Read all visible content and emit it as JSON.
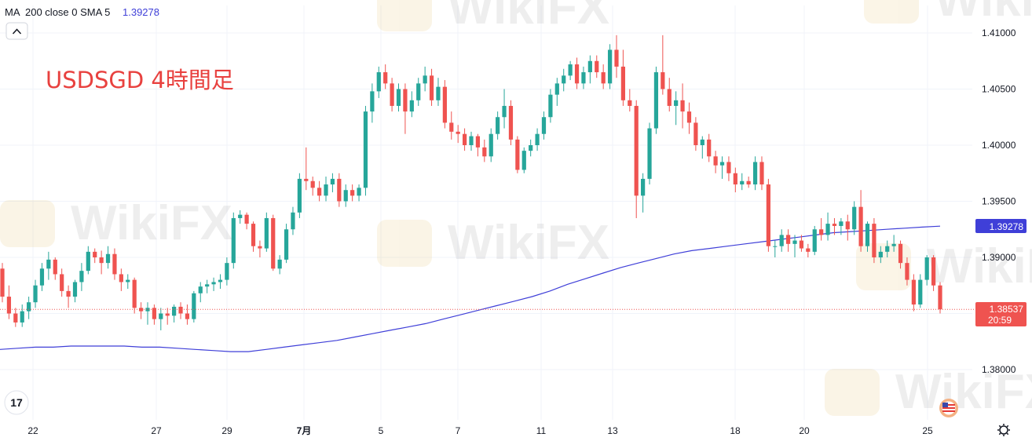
{
  "indicator": {
    "name": "MA",
    "params": "200 close 0 SMA 5",
    "value": "1.39278"
  },
  "chart_title": "USDSGD 4時間足",
  "collapse_button": "^",
  "logo_text": "17",
  "watermark": "WikiFX",
  "colors": {
    "up": "#26a69a",
    "down": "#ef5350",
    "ma": "#3f3fd8",
    "title": "#e8413f",
    "grid": "#f0f3fa",
    "axis_text": "#131722"
  },
  "chart_data": {
    "type": "candlestick",
    "title": "USDSGD 4時間足",
    "ylim": [
      1.3755,
      1.4125
    ],
    "y_ticks": [
      "1.41000",
      "1.40500",
      "1.40000",
      "1.39500",
      "1.39000",
      "1.38000"
    ],
    "x_ticks": [
      "22",
      "27",
      "29",
      "7月",
      "5",
      "7",
      "11",
      "13",
      "18",
      "20",
      "25"
    ],
    "last_price": {
      "value": "1.38537",
      "countdown": "20:59"
    },
    "ma_label": {
      "value": "1.39278"
    },
    "series": [
      {
        "name": "MA 200 close 0 SMA 5",
        "type": "line",
        "values": [
          1.3818,
          1.3819,
          1.382,
          1.382,
          1.3821,
          1.3821,
          1.3821,
          1.3821,
          1.382,
          1.382,
          1.3819,
          1.3818,
          1.3817,
          1.3816,
          1.3816,
          1.3818,
          1.382,
          1.3822,
          1.3824,
          1.3826,
          1.3829,
          1.3832,
          1.3835,
          1.3838,
          1.3841,
          1.3845,
          1.3849,
          1.3853,
          1.3857,
          1.3861,
          1.3865,
          1.387,
          1.3876,
          1.3881,
          1.3886,
          1.3891,
          1.3895,
          1.3899,
          1.3903,
          1.3906,
          1.3908,
          1.391,
          1.3912,
          1.3914,
          1.3916,
          1.3918,
          1.392,
          1.3922,
          1.3923,
          1.3924,
          1.3925,
          1.3926,
          1.3927,
          1.39278
        ]
      },
      {
        "name": "USDSGD",
        "type": "ohlc",
        "candles": [
          [
            1.389,
            1.3895,
            1.386,
            1.3865
          ],
          [
            1.3865,
            1.3875,
            1.3845,
            1.385
          ],
          [
            1.385,
            1.3855,
            1.3838,
            1.3842
          ],
          [
            1.3842,
            1.3858,
            1.3838,
            1.3852
          ],
          [
            1.3852,
            1.3865,
            1.3845,
            1.386
          ],
          [
            1.386,
            1.388,
            1.3855,
            1.3875
          ],
          [
            1.3875,
            1.3895,
            1.387,
            1.389
          ],
          [
            1.389,
            1.3905,
            1.388,
            1.3898
          ],
          [
            1.3898,
            1.39,
            1.388,
            1.3885
          ],
          [
            1.3885,
            1.389,
            1.3865,
            1.387
          ],
          [
            1.387,
            1.3875,
            1.3855,
            1.3865
          ],
          [
            1.3865,
            1.388,
            1.386,
            1.3878
          ],
          [
            1.3878,
            1.3895,
            1.387,
            1.3888
          ],
          [
            1.3888,
            1.391,
            1.3885,
            1.3905
          ],
          [
            1.3905,
            1.3908,
            1.3895,
            1.39
          ],
          [
            1.39,
            1.3906,
            1.3885,
            1.3895
          ],
          [
            1.3895,
            1.391,
            1.389,
            1.3903
          ],
          [
            1.3903,
            1.3908,
            1.388,
            1.3885
          ],
          [
            1.3885,
            1.389,
            1.387,
            1.3878
          ],
          [
            1.3878,
            1.3885,
            1.3872,
            1.388
          ],
          [
            1.388,
            1.3882,
            1.385,
            1.3855
          ],
          [
            1.3855,
            1.386,
            1.3845,
            1.3852
          ],
          [
            1.3852,
            1.386,
            1.384,
            1.3855
          ],
          [
            1.3855,
            1.3858,
            1.384,
            1.3845
          ],
          [
            1.3845,
            1.3855,
            1.3835,
            1.385
          ],
          [
            1.385,
            1.3855,
            1.384,
            1.3848
          ],
          [
            1.3848,
            1.3858,
            1.3842,
            1.3856
          ],
          [
            1.3856,
            1.386,
            1.3845,
            1.385
          ],
          [
            1.385,
            1.3858,
            1.384,
            1.3845
          ],
          [
            1.3845,
            1.387,
            1.3842,
            1.3868
          ],
          [
            1.3868,
            1.3878,
            1.386,
            1.3874
          ],
          [
            1.3874,
            1.388,
            1.3868,
            1.3876
          ],
          [
            1.3876,
            1.3882,
            1.387,
            1.3878
          ],
          [
            1.3878,
            1.3885,
            1.3872,
            1.388
          ],
          [
            1.388,
            1.39,
            1.3875,
            1.3895
          ],
          [
            1.3895,
            1.394,
            1.389,
            1.3935
          ],
          [
            1.3935,
            1.3942,
            1.393,
            1.3938
          ],
          [
            1.3938,
            1.394,
            1.3925,
            1.393
          ],
          [
            1.393,
            1.3932,
            1.3905,
            1.391
          ],
          [
            1.391,
            1.3915,
            1.39,
            1.3908
          ],
          [
            1.3908,
            1.394,
            1.3905,
            1.3935
          ],
          [
            1.3935,
            1.3938,
            1.3888,
            1.389
          ],
          [
            1.389,
            1.3902,
            1.3885,
            1.3898
          ],
          [
            1.3898,
            1.393,
            1.3895,
            1.3925
          ],
          [
            1.3925,
            1.3945,
            1.392,
            1.394
          ],
          [
            1.394,
            1.3975,
            1.3935,
            1.397
          ],
          [
            1.397,
            1.3998,
            1.396,
            1.3968
          ],
          [
            1.3968,
            1.3972,
            1.3955,
            1.3962
          ],
          [
            1.3962,
            1.3968,
            1.395,
            1.3955
          ],
          [
            1.3955,
            1.3972,
            1.395,
            1.3965
          ],
          [
            1.3965,
            1.3975,
            1.3958,
            1.397
          ],
          [
            1.397,
            1.3975,
            1.3945,
            1.395
          ],
          [
            1.395,
            1.3965,
            1.3945,
            1.396
          ],
          [
            1.396,
            1.3965,
            1.395,
            1.3955
          ],
          [
            1.3955,
            1.3965,
            1.395,
            1.3962
          ],
          [
            1.3962,
            1.4035,
            1.3955,
            1.403
          ],
          [
            1.403,
            1.4055,
            1.402,
            1.4048
          ],
          [
            1.4048,
            1.407,
            1.4042,
            1.4065
          ],
          [
            1.4065,
            1.4072,
            1.405,
            1.4055
          ],
          [
            1.4055,
            1.406,
            1.403,
            1.4035
          ],
          [
            1.4035,
            1.4055,
            1.403,
            1.405
          ],
          [
            1.405,
            1.4055,
            1.401,
            1.403
          ],
          [
            1.403,
            1.4048,
            1.4025,
            1.404
          ],
          [
            1.404,
            1.406,
            1.4035,
            1.4055
          ],
          [
            1.4055,
            1.407,
            1.4048,
            1.4062
          ],
          [
            1.4062,
            1.4068,
            1.4035,
            1.404
          ],
          [
            1.404,
            1.406,
            1.4035,
            1.4052
          ],
          [
            1.4052,
            1.4058,
            1.4015,
            1.402
          ],
          [
            1.402,
            1.403,
            1.4005,
            1.4012
          ],
          [
            1.4012,
            1.4018,
            1.4002,
            1.401
          ],
          [
            1.401,
            1.4015,
            1.3995,
            1.4
          ],
          [
            1.4,
            1.4012,
            1.3995,
            1.4008
          ],
          [
            1.4008,
            1.401,
            1.399,
            1.3998
          ],
          [
            1.3998,
            1.4005,
            1.3985,
            1.399
          ],
          [
            1.399,
            1.4015,
            1.3985,
            1.401
          ],
          [
            1.401,
            1.403,
            1.4005,
            1.4025
          ],
          [
            1.4025,
            1.405,
            1.4015,
            1.4035
          ],
          [
            1.4035,
            1.404,
            1.4,
            1.4005
          ],
          [
            1.4005,
            1.4008,
            1.3975,
            1.3978
          ],
          [
            1.3978,
            1.3998,
            1.3975,
            1.3995
          ],
          [
            1.3995,
            1.4005,
            1.399,
            1.4
          ],
          [
            1.4,
            1.4015,
            1.3995,
            1.401
          ],
          [
            1.401,
            1.403,
            1.4005,
            1.4025
          ],
          [
            1.4025,
            1.405,
            1.402,
            1.4045
          ],
          [
            1.4045,
            1.406,
            1.4035,
            1.4055
          ],
          [
            1.4055,
            1.4068,
            1.4048,
            1.4062
          ],
          [
            1.4062,
            1.4075,
            1.4058,
            1.4072
          ],
          [
            1.4072,
            1.4078,
            1.405,
            1.4055
          ],
          [
            1.4055,
            1.407,
            1.405,
            1.4065
          ],
          [
            1.4065,
            1.408,
            1.4055,
            1.4075
          ],
          [
            1.4075,
            1.408,
            1.406,
            1.4065
          ],
          [
            1.4065,
            1.4072,
            1.405,
            1.4055
          ],
          [
            1.4055,
            1.409,
            1.405,
            1.4085
          ],
          [
            1.4085,
            1.4098,
            1.406,
            1.407
          ],
          [
            1.407,
            1.4085,
            1.4035,
            1.404
          ],
          [
            1.404,
            1.405,
            1.403,
            1.4035
          ],
          [
            1.4035,
            1.404,
            1.3935,
            1.3955
          ],
          [
            1.3955,
            1.3975,
            1.394,
            1.397
          ],
          [
            1.397,
            1.402,
            1.3965,
            1.4015
          ],
          [
            1.4015,
            1.407,
            1.401,
            1.4065
          ],
          [
            1.4065,
            1.4098,
            1.4045,
            1.405
          ],
          [
            1.405,
            1.406,
            1.403,
            1.4035
          ],
          [
            1.4035,
            1.4048,
            1.4018,
            1.404
          ],
          [
            1.404,
            1.4055,
            1.4015,
            1.403
          ],
          [
            1.403,
            1.4038,
            1.401,
            1.402
          ],
          [
            1.402,
            1.4025,
            1.3995,
            1.4
          ],
          [
            1.4,
            1.4008,
            1.3988,
            1.4005
          ],
          [
            1.4005,
            1.401,
            1.3985,
            1.399
          ],
          [
            1.399,
            1.3995,
            1.3975,
            1.3982
          ],
          [
            1.3982,
            1.399,
            1.397,
            1.3985
          ],
          [
            1.3985,
            1.399,
            1.3968,
            1.3975
          ],
          [
            1.3975,
            1.398,
            1.3958,
            1.3965
          ],
          [
            1.3965,
            1.3975,
            1.396,
            1.3968
          ],
          [
            1.3968,
            1.3972,
            1.3962,
            1.3965
          ],
          [
            1.3965,
            1.399,
            1.396,
            1.3985
          ],
          [
            1.3985,
            1.399,
            1.396,
            1.3965
          ],
          [
            1.3965,
            1.397,
            1.3905,
            1.391
          ],
          [
            1.391,
            1.3915,
            1.39,
            1.391
          ],
          [
            1.391,
            1.3925,
            1.3905,
            1.392
          ],
          [
            1.392,
            1.3925,
            1.3905,
            1.3912
          ],
          [
            1.3912,
            1.392,
            1.39,
            1.3915
          ],
          [
            1.3915,
            1.392,
            1.3905,
            1.3908
          ],
          [
            1.3908,
            1.3912,
            1.39,
            1.3905
          ],
          [
            1.3905,
            1.3928,
            1.3902,
            1.3925
          ],
          [
            1.3925,
            1.3935,
            1.3915,
            1.392
          ],
          [
            1.392,
            1.394,
            1.3915,
            1.393
          ],
          [
            1.393,
            1.3935,
            1.392,
            1.3928
          ],
          [
            1.3928,
            1.3935,
            1.392,
            1.3932
          ],
          [
            1.3932,
            1.3938,
            1.3915,
            1.3925
          ],
          [
            1.3925,
            1.395,
            1.392,
            1.3945
          ],
          [
            1.3945,
            1.396,
            1.3905,
            1.391
          ],
          [
            1.391,
            1.3932,
            1.3905,
            1.393
          ],
          [
            1.393,
            1.3935,
            1.3895,
            1.39
          ],
          [
            1.39,
            1.391,
            1.3895,
            1.3905
          ],
          [
            1.3905,
            1.3915,
            1.39,
            1.391
          ],
          [
            1.391,
            1.392,
            1.3905,
            1.3912
          ],
          [
            1.3912,
            1.3915,
            1.389,
            1.3895
          ],
          [
            1.3895,
            1.39,
            1.3875,
            1.388
          ],
          [
            1.388,
            1.3885,
            1.3852,
            1.3858
          ],
          [
            1.3858,
            1.3885,
            1.3855,
            1.388
          ],
          [
            1.388,
            1.3902,
            1.3875,
            1.39
          ],
          [
            1.39,
            1.3902,
            1.387,
            1.3875
          ],
          [
            1.3875,
            1.3878,
            1.385,
            1.38537
          ]
        ]
      }
    ]
  }
}
